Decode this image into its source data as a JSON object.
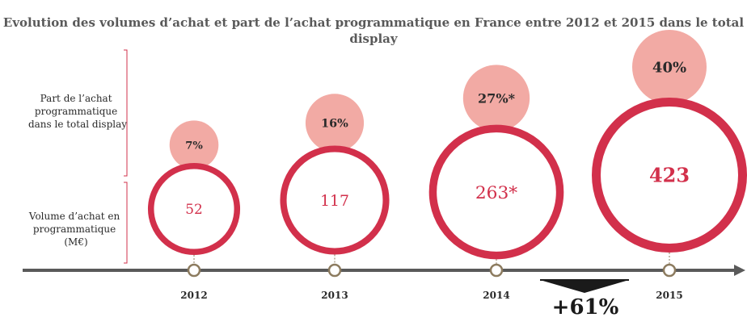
{
  "title": "Evolution des volumes d’achat et part de l’achat programmatique en France entre 2012 et 2015 dans le total display",
  "row_labels": {
    "share": "Part de l’achat programmatique dans le total display",
    "volume": "Volume d’achat en programmatique (M€)"
  },
  "growth_label": "+61%",
  "colors": {
    "ring": "#d2304b",
    "bubble": "#f2aaa4",
    "axis": "#5a5a5a",
    "node": "#8c7b5f",
    "text": "#2a2a2a"
  },
  "chart_data": {
    "type": "bubble",
    "categories": [
      "2012",
      "2013",
      "2014",
      "2015"
    ],
    "series": [
      {
        "name": "Part de l’achat programmatique dans le total display",
        "values": [
          7,
          16,
          27,
          40
        ],
        "labels": [
          "7%",
          "16%",
          "27%*",
          "40%"
        ]
      },
      {
        "name": "Volume d’achat en programmatique (M€)",
        "values": [
          52,
          117,
          263,
          423
        ],
        "labels": [
          "52",
          "117",
          "263*",
          "423"
        ]
      }
    ]
  }
}
